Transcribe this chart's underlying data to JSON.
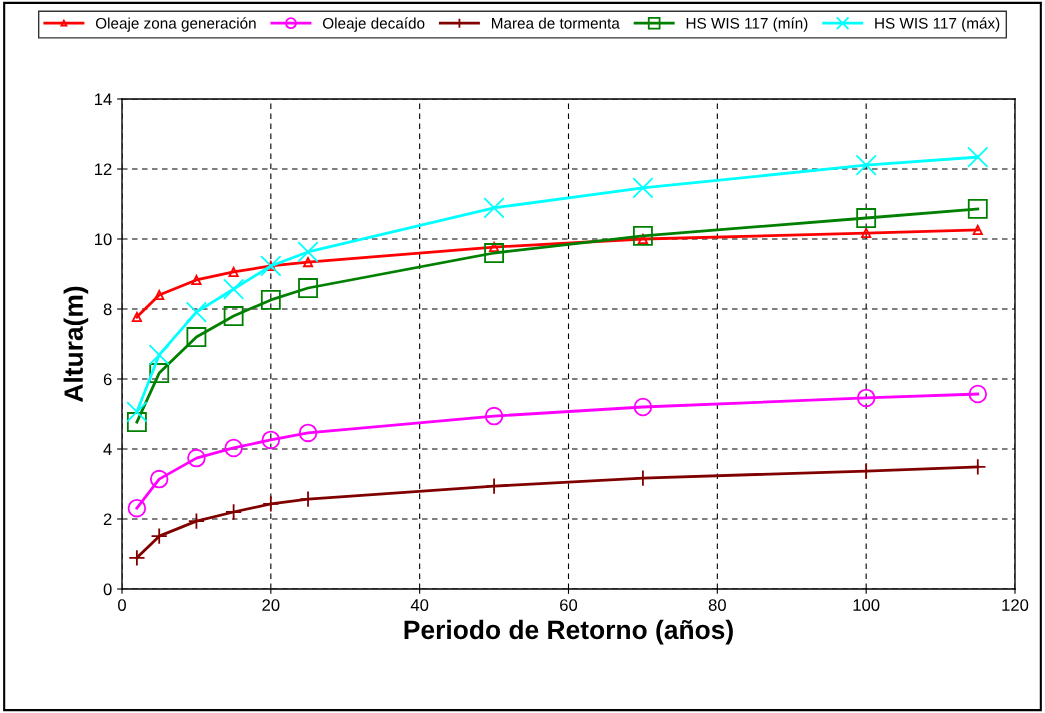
{
  "chart_data": {
    "type": "line",
    "xlabel": "Periodo de Retorno (años)",
    "ylabel": "Altura(m)",
    "x": [
      2,
      5,
      10,
      15,
      20,
      25,
      50,
      70,
      100,
      115
    ],
    "xlim": [
      0,
      120
    ],
    "xticks": [
      0,
      20,
      40,
      60,
      80,
      100,
      120
    ],
    "ylim": [
      0,
      14
    ],
    "yticks": [
      0,
      2,
      4,
      6,
      8,
      10,
      12,
      14
    ],
    "grid": true,
    "line_style": "solid",
    "legend": "top",
    "series": [
      {
        "name": "Oleaje zona generación",
        "color": "#ff0000",
        "marker": "triangle",
        "values": [
          7.77,
          8.4,
          8.83,
          9.06,
          9.23,
          9.34,
          9.77,
          10.0,
          10.17,
          10.26
        ]
      },
      {
        "name": "Oleaje decaído",
        "color": "#ff00ff",
        "marker": "circle",
        "values": [
          2.31,
          3.14,
          3.74,
          4.03,
          4.26,
          4.46,
          4.94,
          5.2,
          5.46,
          5.57
        ]
      },
      {
        "name": "Marea de tormenta",
        "color": "#800000",
        "marker": "cross",
        "values": [
          0.89,
          1.51,
          1.94,
          2.2,
          2.43,
          2.57,
          2.94,
          3.17,
          3.37,
          3.49
        ]
      },
      {
        "name": "HS WIS 117 (mín)",
        "color": "#008000",
        "marker": "square",
        "values": [
          4.77,
          6.17,
          7.2,
          7.8,
          8.26,
          8.6,
          9.6,
          10.09,
          10.6,
          10.86
        ]
      },
      {
        "name": "HS WIS 117 (máx)",
        "color": "#00ffff",
        "marker": "x",
        "values": [
          5.06,
          6.69,
          7.91,
          8.57,
          9.23,
          9.63,
          10.89,
          11.46,
          12.11,
          12.34
        ]
      }
    ]
  }
}
